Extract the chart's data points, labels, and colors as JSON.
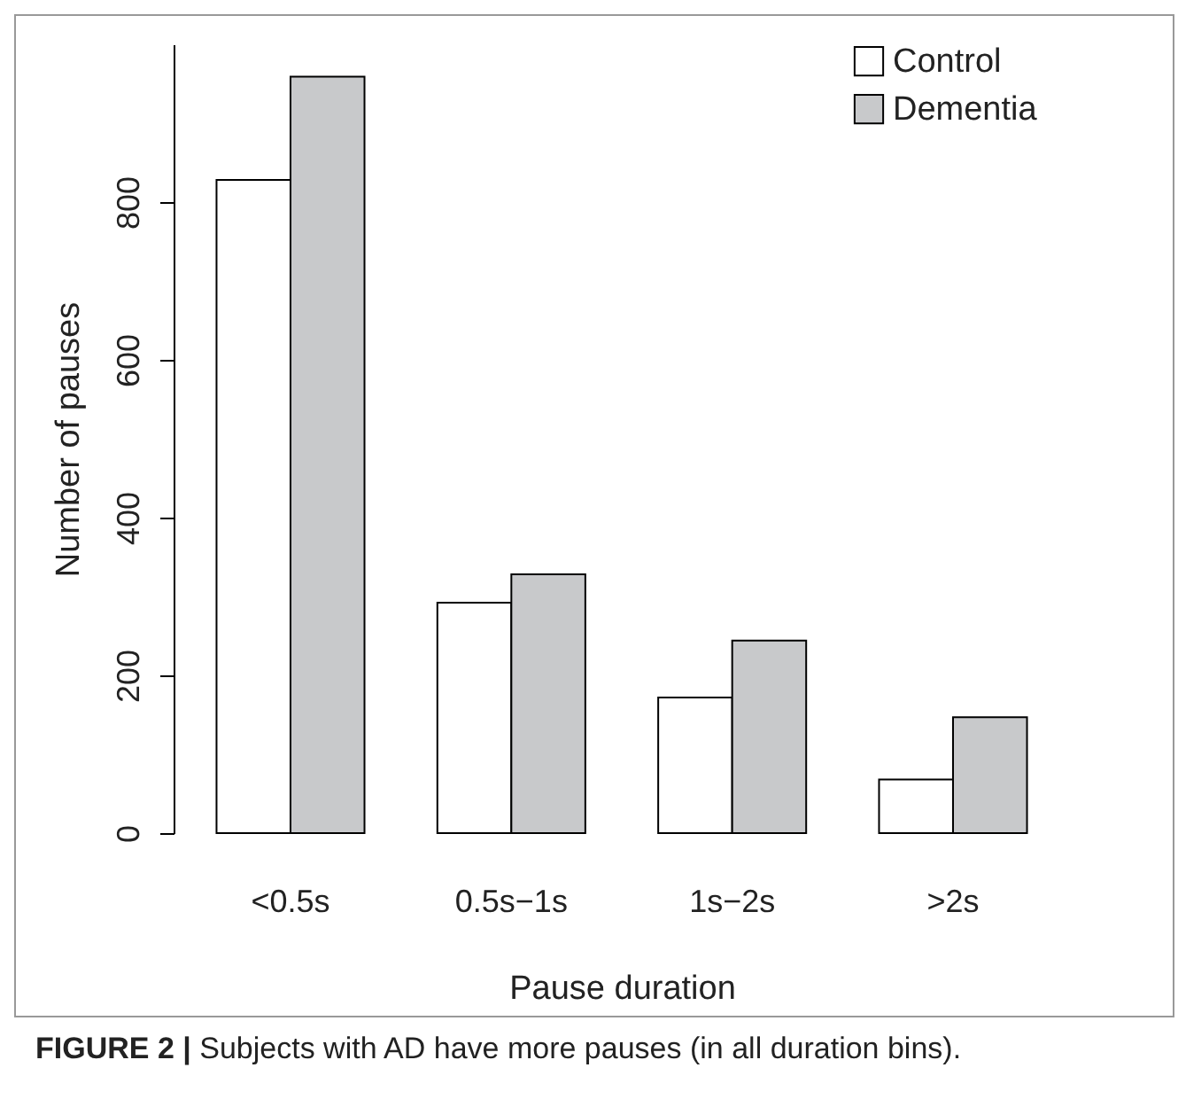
{
  "chart_data": {
    "type": "bar",
    "xlabel": "Pause duration",
    "ylabel": "Number of pauses",
    "categories": [
      "<0.5s",
      "0.5s−1s",
      "1s−2s",
      ">2s"
    ],
    "series": [
      {
        "name": "Control",
        "color": "#ffffff",
        "values": [
          828,
          292,
          172,
          68
        ]
      },
      {
        "name": "Dementia",
        "color": "#c8c9cb",
        "values": [
          959,
          328,
          244,
          147
        ]
      }
    ],
    "ylim": [
      0,
      1000
    ],
    "yticks": [
      0,
      200,
      400,
      600,
      800
    ],
    "grid": false,
    "legend": "top right",
    "annotations": [
      "FIGURE 2 | Subjects with AD have more pauses (in all duration bins)."
    ]
  }
}
